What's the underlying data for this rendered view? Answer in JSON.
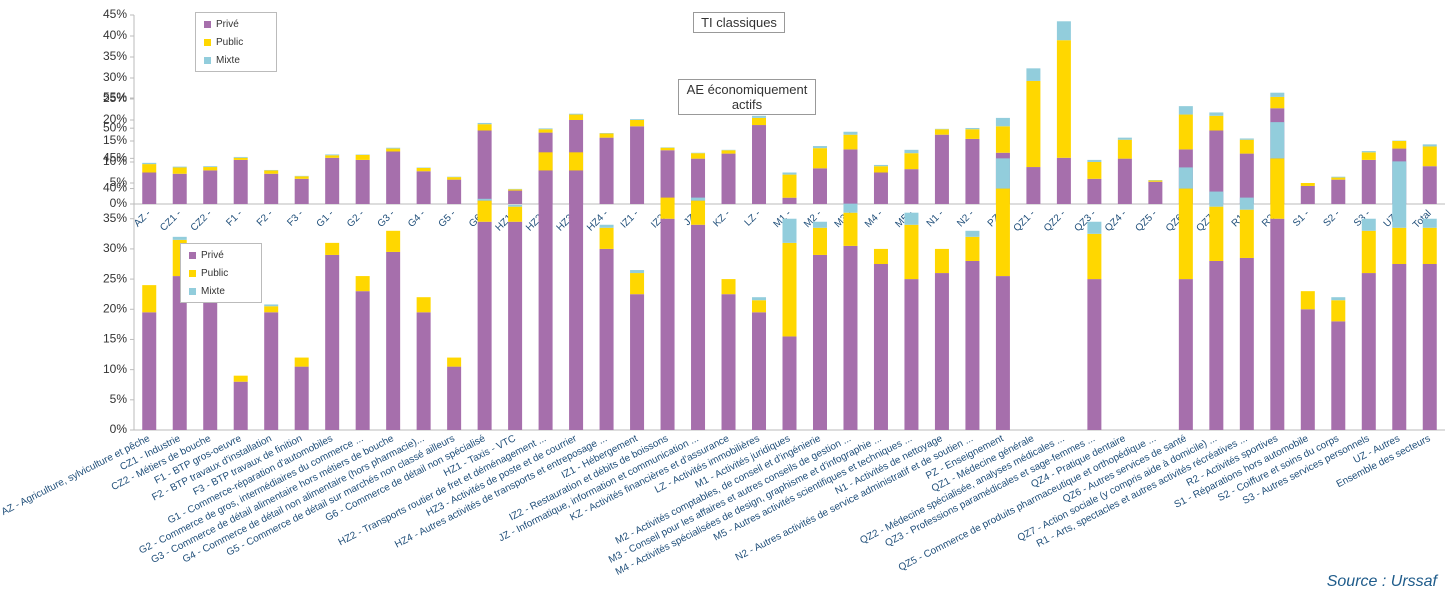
{
  "source": "Source : Urssaf",
  "chart_data": [
    {
      "type": "stacked_bar",
      "title": "TI classiques",
      "categories": [
        "AZ -",
        "CZ1 -",
        "CZ2 -",
        "F1 -",
        "F2 -",
        "F3 -",
        "G1 -",
        "G2 -",
        "G3 -",
        "G4 -",
        "G5 -",
        "G6 -",
        "HZ1 -",
        "HZ2 -",
        "HZ3 -",
        "HZ4 -",
        "IZ1 -",
        "IZ2 -",
        "JZ -",
        "KZ -",
        "LZ -",
        "M1 -",
        "M2 -",
        "M3 -",
        "M4 -",
        "M5 -",
        "N1 -",
        "N2 -",
        "PZ -",
        "QZ1 -",
        "QZ2 -",
        "QZ3 -",
        "QZ4 -",
        "QZ5 -",
        "QZ6 -",
        "QZ7 -",
        "R1 -",
        "R2 -",
        "S1 -",
        "S2 -",
        "S3 -",
        "UZ -",
        "Total"
      ],
      "series": [
        {
          "name": "Privé",
          "color": "#a66fac",
          "values": [
            7.5,
            7.2,
            8,
            10.5,
            7.2,
            6,
            11,
            10.5,
            12.5,
            7.8,
            5.8,
            17.5,
            3.2,
            17,
            20,
            15.8,
            18.5,
            12.8,
            10.8,
            12,
            18.8,
            1.5,
            8.5,
            13,
            7.5,
            8.3,
            16.5,
            15.5,
            12.2,
            8.8,
            11,
            6,
            10.8,
            5.3,
            13,
            17.5,
            12,
            22.8,
            4.3,
            5.8,
            10.5,
            13.2,
            9
          ]
        },
        {
          "name": "Public",
          "color": "#ffd700",
          "values": [
            2,
            1.5,
            0.8,
            0.5,
            0.8,
            0.6,
            0.6,
            1.2,
            0.7,
            0.8,
            0.6,
            1.5,
            0.3,
            0.8,
            1.3,
            1,
            1.5,
            0.6,
            1.3,
            0.8,
            1.7,
            5.5,
            4.8,
            3.5,
            1.5,
            3.8,
            1.3,
            2.3,
            6.3,
            20.5,
            28,
            4,
            4.5,
            0.3,
            8.3,
            3.5,
            3.3,
            2.7,
            0.7,
            0.5,
            1.8,
            1.8,
            4.7
          ]
        },
        {
          "name": "Mixte",
          "color": "#92cddc",
          "values": [
            0.3,
            0.2,
            0.2,
            0.2,
            0.1,
            0.1,
            0.2,
            0.1,
            0.2,
            0.1,
            0.1,
            0.3,
            0.1,
            0.2,
            0.2,
            0.1,
            0.2,
            0.1,
            0.1,
            0.1,
            0.5,
            0.5,
            0.5,
            0.7,
            0.3,
            0.8,
            0.1,
            0.3,
            2,
            3,
            4.5,
            0.5,
            0.5,
            0.1,
            2,
            0.8,
            0.3,
            1,
            0,
            0.2,
            0.3,
            0.1,
            0.5
          ]
        }
      ],
      "ylim": [
        0,
        45
      ],
      "yticks": [
        {
          "value": 0,
          "label": "0%"
        },
        {
          "value": 5,
          "label": "5%"
        },
        {
          "value": 10,
          "label": "10%"
        },
        {
          "value": 15,
          "label": "15%"
        },
        {
          "value": 20,
          "label": "20%"
        },
        {
          "value": 25,
          "label": "25%"
        },
        {
          "value": 30,
          "label": "30%"
        },
        {
          "value": 35,
          "label": "35%"
        },
        {
          "value": 40,
          "label": "40%"
        },
        {
          "value": 45,
          "label": "45%"
        }
      ],
      "grid": false,
      "legend": "upper left"
    },
    {
      "type": "stacked_bar",
      "title": "AE économiquement actifs",
      "categories": [
        "AZ - Agriculture, sylviculture et pêche",
        "CZ1 - Industrie",
        "CZ2 - Métiers de bouche",
        "F1 - BTP gros-oeuvre",
        "F2 - BTP travaux d'installation",
        "F3 - BTP travaux de finition",
        "G1 - Commerce-réparation d'automobiles",
        "G2 - Commerce de gros, intermédiaires du commerce ...",
        "G3 - Commerce de détail alimentaire hors métiers de bouche",
        "G4 - Commerce de détail non alimentaire (hors pharmacie)...",
        "G5 - Commerce de détail sur marchés non classé ailleurs",
        "G6 - Commerce de détail non spécialisé",
        "HZ1 - Taxis - VTC",
        "HZ2 - Transports routier de fret et déménagement ...",
        "HZ3 - Activités de poste et de courrier",
        "HZ4 - Autres activités de transports et entreposage ...",
        "IZ1 - Hébergement",
        "IZ2 - Restauration et débits de boissons",
        "JZ - Informatique, information et communication ...",
        "KZ - Activités financières et d'assurance",
        "LZ - Activités immobilières",
        "M1 - Activités juridiques",
        "M2 - Activités comptables, de conseil et d'ingénierie",
        "M3 - Conseil pour les affaires et autres conseils de gestion ...",
        "M4 - Activités spécialisées de design, graphisme et d'infographie ...",
        "M5 - Autres activités scientifiques et techniques ...",
        "N1 - Activités de nettoyage",
        "N2 - Autres activités de service administratif et de soutien ...",
        "PZ - Enseignement",
        "QZ1 - Médecine générale",
        "QZ2 - Médecine spécialisée, analyses médicales ...",
        "QZ3 - Professions paramédicales et sage-femmes ...",
        "QZ4 - Pratique dentaire",
        "QZ5 - Commerce de produits pharmaceutique et orthopédique ...",
        "QZ6 - Autres services de santé",
        "QZ7 - Action sociale (y compris aide à domicile) ...",
        "R1 - Arts, spectacles et autres activités récréatives ...",
        "R2 - Activités sportives",
        "S1 - Réparations hors automobile",
        "S2 - Coiffure et soins du corps",
        "S3 - Autres services personnels",
        "UZ - Autres",
        "Ensemble des secteurs"
      ],
      "series": [
        {
          "name": "Privé",
          "color": "#a66fac",
          "values": [
            19.5,
            25.5,
            26,
            8,
            19.5,
            10.5,
            29,
            23,
            29.5,
            19.5,
            10.5,
            34.5,
            34.5,
            43,
            43,
            30,
            22.5,
            35,
            34,
            22.5,
            19.5,
            15.5,
            29,
            30.5,
            27.5,
            25,
            26,
            28,
            25.5,
            null,
            null,
            25,
            null,
            null,
            25,
            28,
            28.5,
            35,
            20,
            18,
            26,
            27.5,
            27.5
          ]
        },
        {
          "name": "Public",
          "color": "#ffd700",
          "values": [
            4.5,
            6,
            4,
            1,
            1,
            1.5,
            2,
            2.5,
            3.5,
            2.5,
            1.5,
            3.5,
            2.5,
            3,
            3,
            3.5,
            3.5,
            3.5,
            4,
            2.5,
            2,
            15.5,
            4.5,
            5.5,
            2.5,
            9,
            4,
            4,
            14.5,
            null,
            null,
            7.5,
            null,
            null,
            15,
            9,
            8,
            10,
            3,
            3.5,
            7,
            6,
            6
          ]
        },
        {
          "name": "Mixte",
          "color": "#92cddc",
          "values": [
            0,
            0.5,
            0.5,
            0,
            0.3,
            0,
            0,
            0,
            0,
            0,
            0,
            0.3,
            0.3,
            0,
            0,
            0.5,
            0.5,
            0,
            0.5,
            0,
            0.5,
            4,
            1,
            1.5,
            0,
            2,
            0,
            1,
            5,
            null,
            null,
            2,
            null,
            null,
            3.5,
            2.5,
            2,
            6,
            0,
            0.5,
            2,
            11,
            1.5
          ]
        }
      ],
      "ylim": [
        0,
        55
      ],
      "yticks": [
        {
          "value": 0,
          "label": "0%"
        },
        {
          "value": 5,
          "label": "5%"
        },
        {
          "value": 10,
          "label": "10%"
        },
        {
          "value": 15,
          "label": "15%"
        },
        {
          "value": 20,
          "label": "20%"
        },
        {
          "value": 25,
          "label": "25%"
        },
        {
          "value": 30,
          "label": "30%"
        },
        {
          "value": 35,
          "label": "35%"
        },
        {
          "value": 40,
          "label": "40%"
        },
        {
          "value": 45,
          "label": "45%"
        },
        {
          "value": 50,
          "label": "50%"
        },
        {
          "value": 55,
          "label": "55%"
        }
      ],
      "grid": false,
      "legend": "upper left"
    }
  ]
}
